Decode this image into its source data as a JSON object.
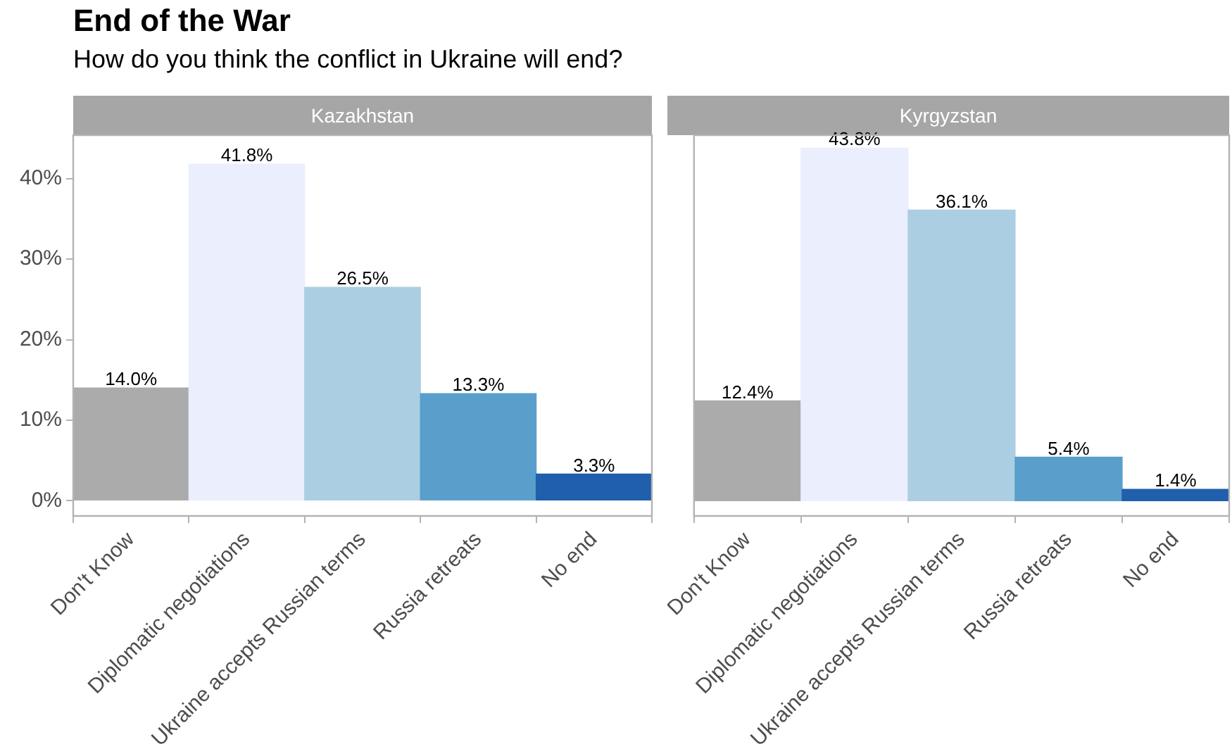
{
  "chart_data": [
    {
      "type": "other",
      "title": "End of the War",
      "subtitle": "How do you think the conflict in Ukraine will end?"
    },
    {
      "type": "bar",
      "title": "Kazakhstan",
      "categories": [
        "Don't Know",
        "Diplomatic negotiations",
        "Ukraine accepts Russian terms",
        "Russia retreats",
        "No end"
      ],
      "values": [
        14.0,
        41.8,
        26.5,
        13.3,
        3.3
      ],
      "colors": [
        "#ababab",
        "#ebeffd",
        "#acceE2",
        "#5a9fcc",
        "#1f5fab"
      ],
      "ylim": [
        -1.9,
        45.4
      ],
      "yticks": [
        {
          "value": 0,
          "label": "0%"
        },
        {
          "value": 10,
          "label": "10%"
        },
        {
          "value": 20,
          "label": "20%"
        },
        {
          "value": 30,
          "label": "30%"
        },
        {
          "value": 40,
          "label": "40%"
        }
      ],
      "value_labels": [
        "14.0%",
        "41.8%",
        "26.5%",
        "13.3%",
        "3.3%"
      ],
      "grid": false,
      "legend": false
    },
    {
      "type": "bar",
      "title": "Kyrgyzstan",
      "categories": [
        "Don't Know",
        "Diplomatic negotiations",
        "Ukraine accepts Russian terms",
        "Russia retreats",
        "No end"
      ],
      "values": [
        12.4,
        43.8,
        36.1,
        5.4,
        1.4
      ],
      "colors": [
        "#ababab",
        "#ebeffd",
        "#acceE2",
        "#5a9fcc",
        "#1f5fab"
      ],
      "ylim": [
        -1.9,
        45.4
      ],
      "value_labels": [
        "12.4%",
        "43.8%",
        "36.1%",
        "5.4%",
        "1.4%"
      ],
      "grid": false,
      "legend": false,
      "tick_labels": "x"
    }
  ]
}
